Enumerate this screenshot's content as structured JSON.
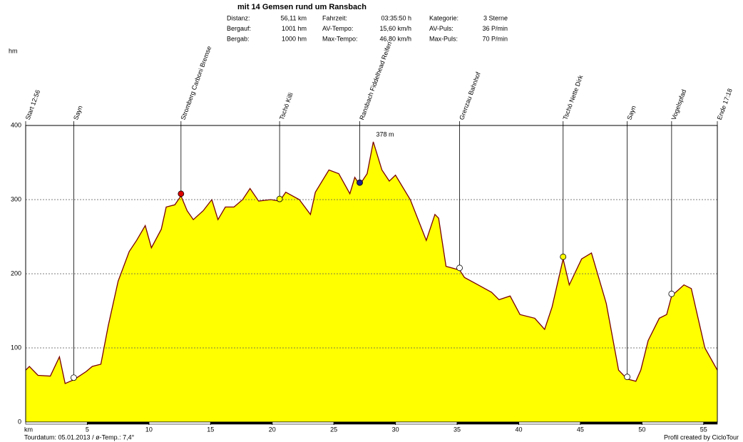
{
  "chart_data": {
    "type": "area",
    "title": "mit 14 Gemsen rund um Ransbach",
    "stats": [
      [
        {
          "label": "Distanz:",
          "value": "56,11 km"
        },
        {
          "label": "Bergauf:",
          "value": "1001 hm"
        },
        {
          "label": "Bergab:",
          "value": "1000 hm"
        }
      ],
      [
        {
          "label": "Fahrzeit:",
          "value": "03:35:50 h"
        },
        {
          "label": "AV-Tempo:",
          "value": "15,60 km/h"
        },
        {
          "label": "Max-Tempo:",
          "value": "46,80 km/h"
        }
      ],
      [
        {
          "label": "Kategorie:",
          "value": "3 Sterne"
        },
        {
          "label": "AV-Puls:",
          "value": "36 P/min"
        },
        {
          "label": "Max-Puls:",
          "value": "70 P/min"
        }
      ]
    ],
    "y_axis_label": "hm",
    "x_axis_label": "km",
    "footer_left": "Tourdatum: 05.01.2013  /  ø-Temp.: 7,4°",
    "footer_right": "Profil created by CicloTour",
    "x": [
      0,
      0.3,
      1,
      2,
      2.74,
      3.2,
      3.9,
      4.9,
      5.4,
      6.1,
      6.7,
      7.5,
      8.4,
      9.0,
      9.7,
      10.2,
      11.0,
      11.4,
      12.1,
      12.6,
      13.1,
      13.6,
      14.4,
      15.1,
      15.6,
      16.2,
      16.9,
      17.6,
      18.2,
      18.9,
      19.9,
      20.6,
      21.1,
      22.2,
      23.1,
      23.5,
      24.6,
      25.4,
      26.3,
      26.7,
      27.1,
      27.7,
      28.2,
      28.9,
      29.5,
      30.0,
      31.2,
      32.5,
      33.2,
      33.5,
      34.1,
      35.2,
      35.6,
      36.7,
      37.8,
      38.4,
      39.3,
      40.1,
      41.3,
      42.1,
      42.7,
      43.6,
      44.1,
      45.1,
      45.9,
      47.1,
      48.1,
      48.8,
      49.5,
      49.9,
      50.5,
      51.4,
      52.0,
      52.4,
      53.4,
      54.0,
      55.1,
      56.11
    ],
    "series": [
      {
        "color": "#ffff00",
        "line_color": "#7a0000",
        "values": [
          70,
          75,
          63,
          62,
          88,
          52,
          57,
          68,
          75,
          78,
          130,
          190,
          230,
          245,
          265,
          235,
          260,
          290,
          293,
          305,
          285,
          273,
          285,
          300,
          273,
          290,
          290,
          300,
          315,
          298,
          300,
          298,
          310,
          300,
          280,
          310,
          340,
          335,
          308,
          330,
          320,
          335,
          378,
          340,
          325,
          333,
          300,
          245,
          280,
          275,
          210,
          205,
          195,
          185,
          175,
          165,
          170,
          145,
          140,
          125,
          155,
          220,
          185,
          220,
          228,
          160,
          70,
          58,
          55,
          70,
          110,
          140,
          145,
          170,
          185,
          180,
          100,
          70
        ]
      }
    ],
    "peak_label": {
      "x": 28.2,
      "y": 378,
      "label": "378 m"
    },
    "waypoints": [
      {
        "label": "Start 12:56",
        "x": 0
      },
      {
        "label": "Sayn",
        "x": 3.9
      },
      {
        "label": "Stromberg Carboni Bremse",
        "x": 12.6
      },
      {
        "label": "Tschö Killi",
        "x": 20.6
      },
      {
        "label": "Ransbach Fiddelhead Reifen",
        "x": 27.1
      },
      {
        "label": "Grenzau Bahnhof",
        "x": 35.2
      },
      {
        "label": "Tschö Nette Dirk",
        "x": 43.6
      },
      {
        "label": "Sayn",
        "x": 48.8
      },
      {
        "label": "Vogelspfad",
        "x": 52.4
      },
      {
        "label": "Ende 17:18",
        "x": 56.11
      }
    ],
    "xlim": [
      0,
      56.11
    ],
    "ylim": [
      0,
      400
    ],
    "xticks": [
      5,
      10,
      15,
      20,
      25,
      30,
      35,
      40,
      45,
      50,
      55
    ],
    "yticks": [
      0,
      100,
      200,
      300,
      400
    ],
    "grid": true
  }
}
